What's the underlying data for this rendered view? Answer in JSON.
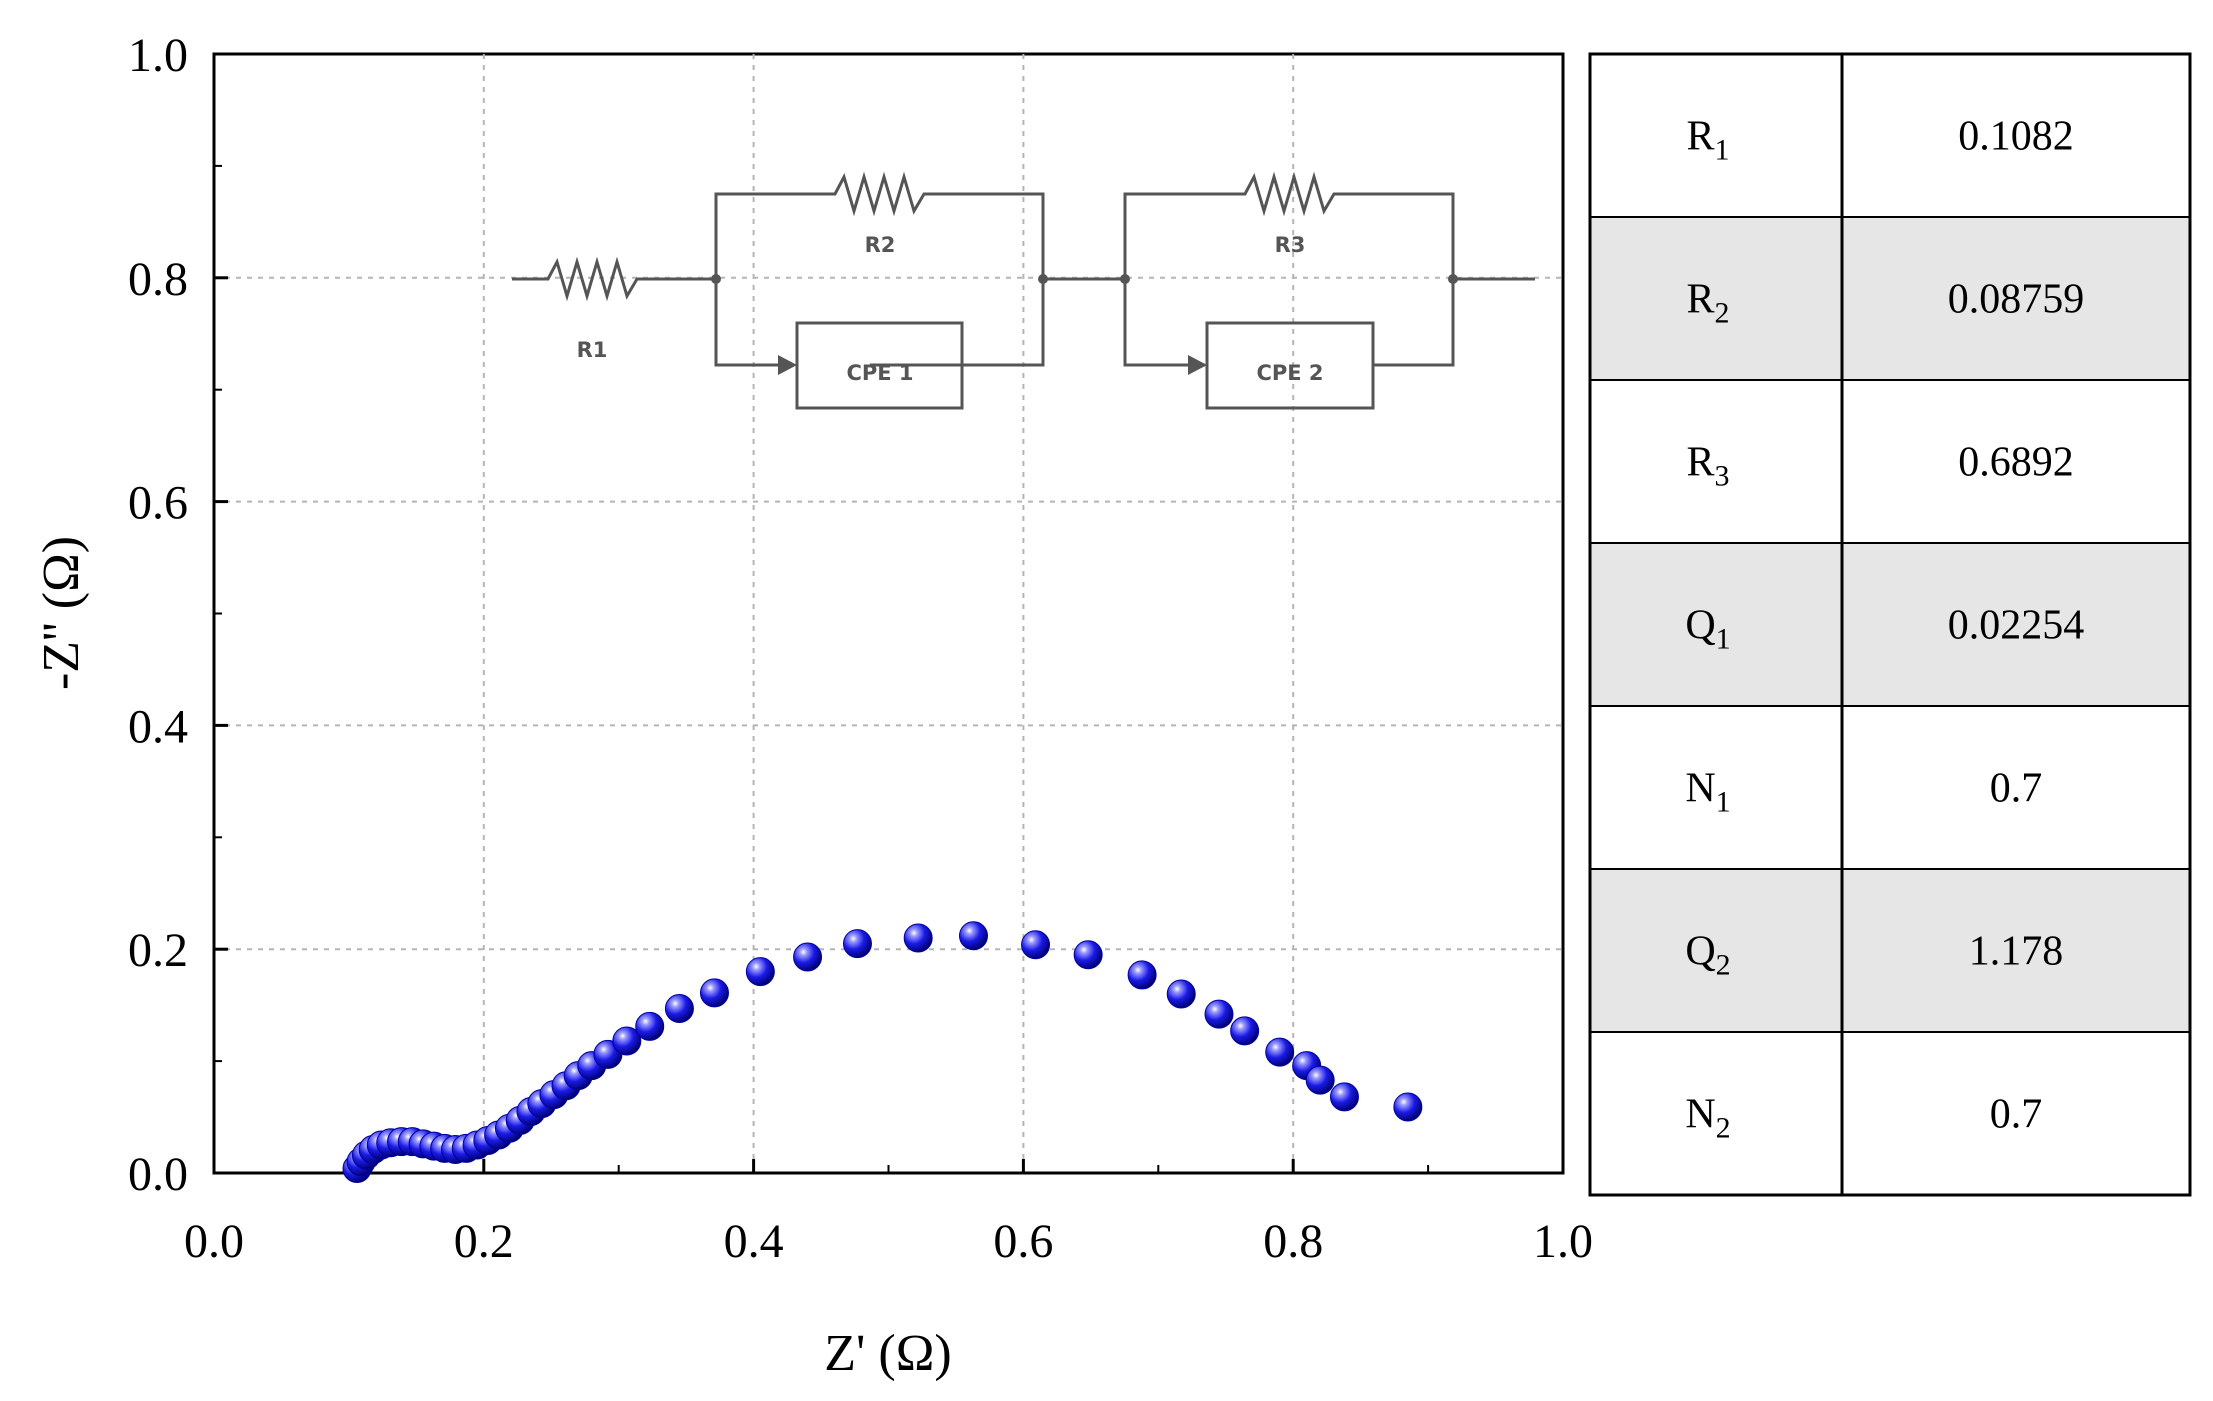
{
  "chart_data": {
    "type": "scatter",
    "xlabel": "Z' (Ω)",
    "ylabel": "-Z'' (Ω)",
    "xlim": [
      0.0,
      1.0
    ],
    "ylim": [
      0.0,
      1.0
    ],
    "xticks": [
      "0.0",
      "0.2",
      "0.4",
      "0.6",
      "0.8",
      "1.0"
    ],
    "yticks": [
      "0.0",
      "0.2",
      "0.4",
      "0.6",
      "0.8",
      "1.0"
    ],
    "grid": true,
    "series": [
      {
        "color": "#1010e0",
        "points": [
          [
            0.106,
            0.004
          ],
          [
            0.109,
            0.01
          ],
          [
            0.113,
            0.016
          ],
          [
            0.118,
            0.021
          ],
          [
            0.124,
            0.025
          ],
          [
            0.131,
            0.027
          ],
          [
            0.139,
            0.028
          ],
          [
            0.147,
            0.028
          ],
          [
            0.155,
            0.026
          ],
          [
            0.163,
            0.024
          ],
          [
            0.171,
            0.022
          ],
          [
            0.179,
            0.021
          ],
          [
            0.187,
            0.022
          ],
          [
            0.195,
            0.025
          ],
          [
            0.203,
            0.029
          ],
          [
            0.211,
            0.034
          ],
          [
            0.219,
            0.04
          ],
          [
            0.227,
            0.047
          ],
          [
            0.235,
            0.055
          ],
          [
            0.243,
            0.062
          ],
          [
            0.252,
            0.07
          ],
          [
            0.261,
            0.078
          ],
          [
            0.27,
            0.087
          ],
          [
            0.28,
            0.096
          ],
          [
            0.292,
            0.106
          ],
          [
            0.306,
            0.118
          ],
          [
            0.323,
            0.131
          ],
          [
            0.345,
            0.147
          ],
          [
            0.371,
            0.161
          ],
          [
            0.405,
            0.18
          ],
          [
            0.44,
            0.193
          ],
          [
            0.477,
            0.205
          ],
          [
            0.522,
            0.21
          ],
          [
            0.563,
            0.212
          ],
          [
            0.609,
            0.204
          ],
          [
            0.648,
            0.195
          ],
          [
            0.688,
            0.177
          ],
          [
            0.717,
            0.16
          ],
          [
            0.745,
            0.142
          ],
          [
            0.764,
            0.127
          ],
          [
            0.79,
            0.108
          ],
          [
            0.81,
            0.096
          ],
          [
            0.82,
            0.083
          ],
          [
            0.838,
            0.068
          ],
          [
            0.885,
            0.059
          ]
        ]
      }
    ]
  },
  "circuit": {
    "r1": "R1",
    "r2": "R2",
    "r3": "R3",
    "cpe1": "CPE 1",
    "cpe2": "CPE 2"
  },
  "table": {
    "rows": [
      {
        "symbol": "R",
        "sub": "1",
        "value": "0.1082",
        "shaded": false
      },
      {
        "symbol": "R",
        "sub": "2",
        "value": "0.08759",
        "shaded": true
      },
      {
        "symbol": "R",
        "sub": "3",
        "value": "0.6892",
        "shaded": false
      },
      {
        "symbol": "Q",
        "sub": "1",
        "value": "0.02254",
        "shaded": true
      },
      {
        "symbol": "N",
        "sub": "1",
        "value": "0.7",
        "shaded": false
      },
      {
        "symbol": "Q",
        "sub": "2",
        "value": "1.178",
        "shaded": true
      },
      {
        "symbol": "N",
        "sub": "2",
        "value": "0.7",
        "shaded": false
      }
    ]
  }
}
